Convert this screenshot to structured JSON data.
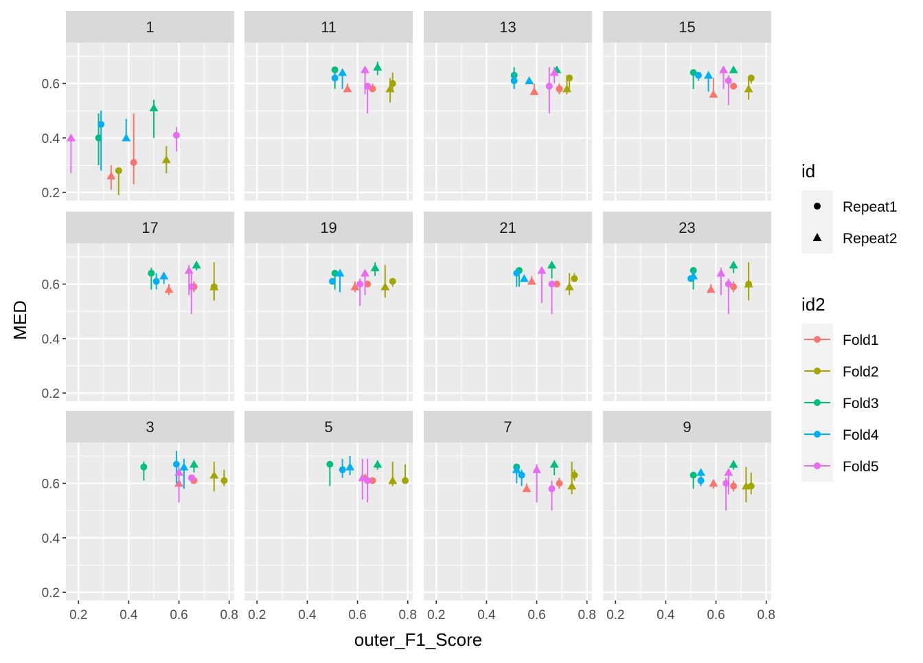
{
  "chart_data": {
    "type": "scatter",
    "subtype": "faceted pointrange (facet_wrap, 4 columns x 3 rows)",
    "xlabel": "outer_F1_Score",
    "ylabel": "MED",
    "xlim": [
      0.15,
      0.82
    ],
    "ylim": [
      0.17,
      0.75
    ],
    "x_ticks": [
      "0.2",
      "0.4",
      "0.6",
      "0.8"
    ],
    "y_ticks": [
      "0.2",
      "0.4",
      "0.6"
    ],
    "grid": true,
    "legend_position": "right",
    "legends": [
      {
        "title": "id",
        "entries": [
          {
            "label": "Repeat1",
            "shape": "circle"
          },
          {
            "label": "Repeat2",
            "shape": "triangle"
          }
        ]
      },
      {
        "title": "id2",
        "entries": [
          {
            "label": "Fold1",
            "color": "#F8766D"
          },
          {
            "label": "Fold2",
            "color": "#A3A500"
          },
          {
            "label": "Fold3",
            "color": "#00BF7D"
          },
          {
            "label": "Fold4",
            "color": "#00B0F6"
          },
          {
            "label": "Fold5",
            "color": "#E76BF3"
          }
        ]
      }
    ],
    "point_fields": [
      "x",
      "y",
      "ymin",
      "ymax",
      "fold",
      "repeat"
    ],
    "panels": [
      {
        "label": "1",
        "points": [
          [
            0.42,
            0.31,
            0.23,
            0.49,
            "Fold1",
            "Repeat1"
          ],
          [
            0.33,
            0.26,
            0.21,
            0.3,
            "Fold1",
            "Repeat2"
          ],
          [
            0.36,
            0.28,
            0.19,
            0.29,
            "Fold2",
            "Repeat1"
          ],
          [
            0.55,
            0.32,
            0.27,
            0.37,
            "Fold2",
            "Repeat2"
          ],
          [
            0.28,
            0.4,
            0.3,
            0.49,
            "Fold3",
            "Repeat1"
          ],
          [
            0.5,
            0.51,
            0.4,
            0.54,
            "Fold3",
            "Repeat2"
          ],
          [
            0.29,
            0.45,
            0.28,
            0.5,
            "Fold4",
            "Repeat1"
          ],
          [
            0.39,
            0.4,
            0.39,
            0.47,
            "Fold4",
            "Repeat2"
          ],
          [
            0.59,
            0.41,
            0.35,
            0.44,
            "Fold5",
            "Repeat1"
          ],
          [
            0.17,
            0.4,
            0.27,
            0.41,
            "Fold5",
            "Repeat2"
          ]
        ]
      },
      {
        "label": "11",
        "points": [
          [
            0.66,
            0.58,
            0.57,
            0.6,
            "Fold1",
            "Repeat1"
          ],
          [
            0.56,
            0.58,
            0.57,
            0.6,
            "Fold1",
            "Repeat2"
          ],
          [
            0.74,
            0.6,
            0.57,
            0.64,
            "Fold2",
            "Repeat1"
          ],
          [
            0.73,
            0.58,
            0.53,
            0.62,
            "Fold2",
            "Repeat2"
          ],
          [
            0.51,
            0.65,
            0.58,
            0.66,
            "Fold3",
            "Repeat1"
          ],
          [
            0.68,
            0.66,
            0.63,
            0.68,
            "Fold3",
            "Repeat2"
          ],
          [
            0.51,
            0.62,
            0.6,
            0.64,
            "Fold4",
            "Repeat1"
          ],
          [
            0.54,
            0.64,
            0.58,
            0.65,
            "Fold4",
            "Repeat2"
          ],
          [
            0.64,
            0.59,
            0.49,
            0.6,
            "Fold5",
            "Repeat1"
          ],
          [
            0.63,
            0.65,
            0.56,
            0.66,
            "Fold5",
            "Repeat2"
          ]
        ]
      },
      {
        "label": "13",
        "points": [
          [
            0.69,
            0.58,
            0.56,
            0.6,
            "Fold1",
            "Repeat1"
          ],
          [
            0.59,
            0.57,
            0.56,
            0.6,
            "Fold1",
            "Repeat2"
          ],
          [
            0.73,
            0.62,
            0.58,
            0.63,
            "Fold2",
            "Repeat1"
          ],
          [
            0.72,
            0.58,
            0.56,
            0.63,
            "Fold2",
            "Repeat2"
          ],
          [
            0.51,
            0.63,
            0.58,
            0.66,
            "Fold3",
            "Repeat1"
          ],
          [
            0.68,
            0.65,
            0.64,
            0.66,
            "Fold3",
            "Repeat2"
          ],
          [
            0.51,
            0.61,
            0.58,
            0.64,
            "Fold4",
            "Repeat1"
          ],
          [
            0.57,
            0.61,
            0.6,
            0.62,
            "Fold4",
            "Repeat2"
          ],
          [
            0.65,
            0.59,
            0.49,
            0.66,
            "Fold5",
            "Repeat1"
          ],
          [
            0.67,
            0.64,
            0.6,
            0.66,
            "Fold5",
            "Repeat2"
          ]
        ]
      },
      {
        "label": "15",
        "points": [
          [
            0.67,
            0.59,
            0.58,
            0.6,
            "Fold1",
            "Repeat1"
          ],
          [
            0.59,
            0.56,
            0.56,
            0.62,
            "Fold1",
            "Repeat2"
          ],
          [
            0.74,
            0.62,
            0.6,
            0.63,
            "Fold2",
            "Repeat1"
          ],
          [
            0.73,
            0.58,
            0.54,
            0.62,
            "Fold2",
            "Repeat2"
          ],
          [
            0.51,
            0.64,
            0.58,
            0.65,
            "Fold3",
            "Repeat1"
          ],
          [
            0.67,
            0.65,
            0.64,
            0.66,
            "Fold3",
            "Repeat2"
          ],
          [
            0.53,
            0.63,
            0.61,
            0.64,
            "Fold4",
            "Repeat1"
          ],
          [
            0.57,
            0.63,
            0.57,
            0.64,
            "Fold4",
            "Repeat2"
          ],
          [
            0.65,
            0.61,
            0.52,
            0.63,
            "Fold5",
            "Repeat1"
          ],
          [
            0.63,
            0.65,
            0.58,
            0.66,
            "Fold5",
            "Repeat2"
          ]
        ]
      },
      {
        "label": "17",
        "points": [
          [
            0.66,
            0.59,
            0.57,
            0.61,
            "Fold1",
            "Repeat1"
          ],
          [
            0.56,
            0.58,
            0.56,
            0.6,
            "Fold1",
            "Repeat2"
          ],
          [
            0.74,
            0.59,
            0.54,
            0.61,
            "Fold2",
            "Repeat1"
          ],
          [
            0.74,
            0.59,
            0.54,
            0.68,
            "Fold2",
            "Repeat2"
          ],
          [
            0.49,
            0.64,
            0.58,
            0.66,
            "Fold3",
            "Repeat1"
          ],
          [
            0.67,
            0.67,
            0.65,
            0.68,
            "Fold3",
            "Repeat2"
          ],
          [
            0.51,
            0.61,
            0.58,
            0.64,
            "Fold4",
            "Repeat1"
          ],
          [
            0.54,
            0.63,
            0.6,
            0.64,
            "Fold4",
            "Repeat2"
          ],
          [
            0.65,
            0.59,
            0.49,
            0.64,
            "Fold5",
            "Repeat1"
          ],
          [
            0.64,
            0.65,
            0.56,
            0.67,
            "Fold5",
            "Repeat2"
          ]
        ]
      },
      {
        "label": "19",
        "points": [
          [
            0.64,
            0.6,
            0.59,
            0.61,
            "Fold1",
            "Repeat1"
          ],
          [
            0.59,
            0.59,
            0.57,
            0.61,
            "Fold1",
            "Repeat2"
          ],
          [
            0.74,
            0.61,
            0.59,
            0.62,
            "Fold2",
            "Repeat1"
          ],
          [
            0.71,
            0.59,
            0.55,
            0.67,
            "Fold2",
            "Repeat2"
          ],
          [
            0.51,
            0.64,
            0.58,
            0.65,
            "Fold3",
            "Repeat1"
          ],
          [
            0.67,
            0.66,
            0.63,
            0.68,
            "Fold3",
            "Repeat2"
          ],
          [
            0.5,
            0.61,
            0.6,
            0.62,
            "Fold4",
            "Repeat1"
          ],
          [
            0.53,
            0.64,
            0.57,
            0.65,
            "Fold4",
            "Repeat2"
          ],
          [
            0.61,
            0.6,
            0.52,
            0.62,
            "Fold5",
            "Repeat1"
          ],
          [
            0.63,
            0.64,
            0.56,
            0.65,
            "Fold5",
            "Repeat2"
          ]
        ]
      },
      {
        "label": "21",
        "points": [
          [
            0.68,
            0.6,
            0.59,
            0.61,
            "Fold1",
            "Repeat1"
          ],
          [
            0.58,
            0.61,
            0.6,
            0.63,
            "Fold1",
            "Repeat2"
          ],
          [
            0.75,
            0.62,
            0.61,
            0.64,
            "Fold2",
            "Repeat1"
          ],
          [
            0.73,
            0.59,
            0.56,
            0.64,
            "Fold2",
            "Repeat2"
          ],
          [
            0.53,
            0.65,
            0.59,
            0.66,
            "Fold3",
            "Repeat1"
          ],
          [
            0.66,
            0.67,
            0.62,
            0.68,
            "Fold3",
            "Repeat2"
          ],
          [
            0.52,
            0.64,
            0.59,
            0.65,
            "Fold4",
            "Repeat1"
          ],
          [
            0.55,
            0.62,
            0.61,
            0.63,
            "Fold4",
            "Repeat2"
          ],
          [
            0.66,
            0.6,
            0.49,
            0.61,
            "Fold5",
            "Repeat1"
          ],
          [
            0.62,
            0.65,
            0.53,
            0.66,
            "Fold5",
            "Repeat2"
          ]
        ]
      },
      {
        "label": "23",
        "points": [
          [
            0.67,
            0.59,
            0.57,
            0.61,
            "Fold1",
            "Repeat1"
          ],
          [
            0.58,
            0.58,
            0.57,
            0.6,
            "Fold1",
            "Repeat2"
          ],
          [
            0.73,
            0.6,
            0.59,
            0.62,
            "Fold2",
            "Repeat1"
          ],
          [
            0.73,
            0.6,
            0.54,
            0.68,
            "Fold2",
            "Repeat2"
          ],
          [
            0.51,
            0.65,
            0.58,
            0.66,
            "Fold3",
            "Repeat1"
          ],
          [
            0.67,
            0.67,
            0.64,
            0.68,
            "Fold3",
            "Repeat2"
          ],
          [
            0.5,
            0.62,
            0.61,
            0.63,
            "Fold4",
            "Repeat1"
          ],
          [
            0.51,
            0.63,
            0.61,
            0.65,
            "Fold4",
            "Repeat2"
          ],
          [
            0.65,
            0.6,
            0.49,
            0.62,
            "Fold5",
            "Repeat1"
          ],
          [
            0.62,
            0.64,
            0.56,
            0.66,
            "Fold5",
            "Repeat2"
          ]
        ]
      },
      {
        "label": "3",
        "points": [
          [
            0.66,
            0.61,
            0.6,
            0.63,
            "Fold1",
            "Repeat1"
          ],
          [
            0.6,
            0.6,
            0.6,
            0.62,
            "Fold1",
            "Repeat2"
          ],
          [
            0.78,
            0.61,
            0.59,
            0.65,
            "Fold2",
            "Repeat1"
          ],
          [
            0.74,
            0.63,
            0.57,
            0.68,
            "Fold2",
            "Repeat2"
          ],
          [
            0.46,
            0.66,
            0.61,
            0.68,
            "Fold3",
            "Repeat1"
          ],
          [
            0.66,
            0.67,
            0.64,
            0.68,
            "Fold3",
            "Repeat2"
          ],
          [
            0.59,
            0.67,
            0.6,
            0.72,
            "Fold4",
            "Repeat1"
          ],
          [
            0.62,
            0.66,
            0.58,
            0.69,
            "Fold4",
            "Repeat2"
          ],
          [
            0.65,
            0.62,
            0.6,
            0.63,
            "Fold5",
            "Repeat1"
          ],
          [
            0.6,
            0.64,
            0.53,
            0.66,
            "Fold5",
            "Repeat2"
          ]
        ]
      },
      {
        "label": "5",
        "points": [
          [
            0.66,
            0.61,
            0.6,
            0.62,
            "Fold1",
            "Repeat1"
          ],
          [
            0.63,
            0.62,
            0.6,
            0.63,
            "Fold1",
            "Repeat2"
          ],
          [
            0.79,
            0.61,
            0.6,
            0.67,
            "Fold2",
            "Repeat1"
          ],
          [
            0.74,
            0.61,
            0.59,
            0.68,
            "Fold2",
            "Repeat2"
          ],
          [
            0.49,
            0.67,
            0.59,
            0.67,
            "Fold3",
            "Repeat1"
          ],
          [
            0.68,
            0.67,
            0.65,
            0.68,
            "Fold3",
            "Repeat2"
          ],
          [
            0.54,
            0.65,
            0.62,
            0.69,
            "Fold4",
            "Repeat1"
          ],
          [
            0.57,
            0.66,
            0.63,
            0.7,
            "Fold4",
            "Repeat2"
          ],
          [
            0.64,
            0.61,
            0.53,
            0.69,
            "Fold5",
            "Repeat1"
          ],
          [
            0.62,
            0.62,
            0.54,
            0.69,
            "Fold5",
            "Repeat2"
          ]
        ]
      },
      {
        "label": "7",
        "points": [
          [
            0.69,
            0.6,
            0.58,
            0.62,
            "Fold1",
            "Repeat1"
          ],
          [
            0.56,
            0.58,
            0.57,
            0.6,
            "Fold1",
            "Repeat2"
          ],
          [
            0.75,
            0.63,
            0.61,
            0.65,
            "Fold2",
            "Repeat1"
          ],
          [
            0.74,
            0.59,
            0.56,
            0.68,
            "Fold2",
            "Repeat2"
          ],
          [
            0.52,
            0.66,
            0.63,
            0.67,
            "Fold3",
            "Repeat1"
          ],
          [
            0.67,
            0.67,
            0.63,
            0.68,
            "Fold3",
            "Repeat2"
          ],
          [
            0.54,
            0.63,
            0.59,
            0.65,
            "Fold4",
            "Repeat1"
          ],
          [
            0.52,
            0.65,
            0.6,
            0.66,
            "Fold4",
            "Repeat2"
          ],
          [
            0.66,
            0.58,
            0.5,
            0.61,
            "Fold5",
            "Repeat1"
          ],
          [
            0.6,
            0.65,
            0.53,
            0.67,
            "Fold5",
            "Repeat2"
          ]
        ]
      },
      {
        "label": "9",
        "points": [
          [
            0.67,
            0.59,
            0.57,
            0.61,
            "Fold1",
            "Repeat1"
          ],
          [
            0.59,
            0.6,
            0.58,
            0.61,
            "Fold1",
            "Repeat2"
          ],
          [
            0.74,
            0.59,
            0.56,
            0.64,
            "Fold2",
            "Repeat1"
          ],
          [
            0.72,
            0.59,
            0.53,
            0.66,
            "Fold2",
            "Repeat2"
          ],
          [
            0.51,
            0.63,
            0.58,
            0.64,
            "Fold3",
            "Repeat1"
          ],
          [
            0.67,
            0.67,
            0.65,
            0.68,
            "Fold3",
            "Repeat2"
          ],
          [
            0.54,
            0.61,
            0.59,
            0.62,
            "Fold4",
            "Repeat1"
          ],
          [
            0.54,
            0.64,
            0.6,
            0.65,
            "Fold4",
            "Repeat2"
          ],
          [
            0.64,
            0.6,
            0.5,
            0.62,
            "Fold5",
            "Repeat1"
          ],
          [
            0.65,
            0.64,
            0.56,
            0.65,
            "Fold5",
            "Repeat2"
          ]
        ]
      }
    ]
  }
}
